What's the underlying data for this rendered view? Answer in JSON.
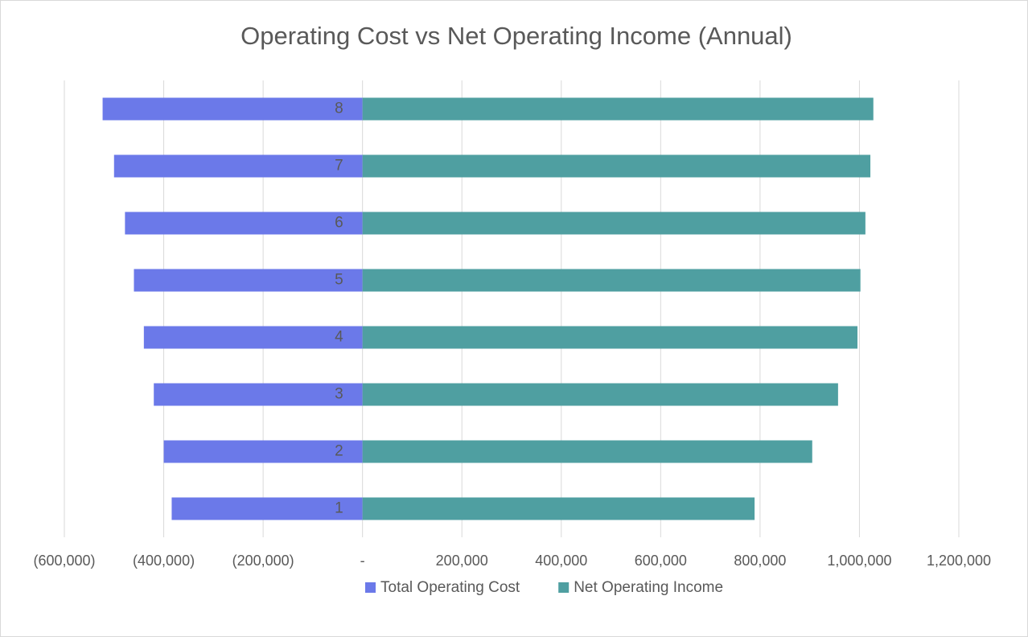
{
  "chart_data": {
    "type": "butterfly-bar",
    "title": "Operating Cost vs Net Operating Income (Annual)",
    "categories": [
      "1",
      "2",
      "3",
      "4",
      "5",
      "6",
      "7",
      "8"
    ],
    "series": [
      {
        "name": "Total Operating Cost",
        "color": "#6b79e9",
        "values": [
          -384000,
          -400000,
          -420000,
          -440000,
          -460000,
          -478000,
          -500000,
          -523000
        ]
      },
      {
        "name": "Net Operating Income",
        "color": "#4f9fa1",
        "values": [
          789000,
          905000,
          957000,
          996000,
          1002000,
          1012000,
          1022000,
          1028000
        ]
      }
    ],
    "xlim": [
      -600000,
      1200000
    ],
    "xticks": [
      {
        "value": -600000,
        "label": "(600,000)"
      },
      {
        "value": -400000,
        "label": "(400,000)"
      },
      {
        "value": -200000,
        "label": "(200,000)"
      },
      {
        "value": 0,
        "label": "-"
      },
      {
        "value": 200000,
        "label": "200,000"
      },
      {
        "value": 400000,
        "label": "400,000"
      },
      {
        "value": 600000,
        "label": "600,000"
      },
      {
        "value": 800000,
        "label": "800,000"
      },
      {
        "value": 1000000,
        "label": "1,000,000"
      },
      {
        "value": 1200000,
        "label": "1,200,000"
      }
    ],
    "grid": true,
    "legend": "bottom"
  }
}
